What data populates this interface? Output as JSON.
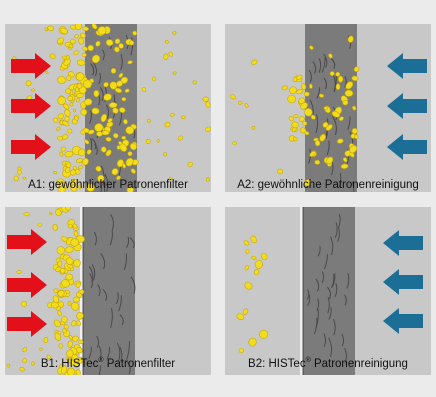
{
  "colors": {
    "background": "#ebebeb",
    "panel": "#c8c8c8",
    "filter_media": "#7b7b7b",
    "fiber": "#4a4a4a",
    "dust": "#f2dc1e",
    "dust_edge": "#c8a800",
    "arrow_filter": "#e3101a",
    "arrow_cleaning": "#1b6e96",
    "membrane": "#f0f0f0"
  },
  "icons": {
    "flow_in": "arrow-right-icon",
    "pulse_back": "arrow-left-icon"
  },
  "panels": {
    "a1": {
      "caption": "A1:  gewöhnlicher Patronenfilter"
    },
    "a2": {
      "caption": "A2:  gewöhnliche Patronenreinigung"
    },
    "b1": {
      "caption_prefix": "B1:  HISTec",
      "caption_sup": "®",
      "caption_suffix": " Patronenfilter"
    },
    "b2": {
      "caption_prefix": "B2:  HISTec",
      "caption_sup": "®",
      "caption_suffix": " Patronenreinigung"
    }
  }
}
